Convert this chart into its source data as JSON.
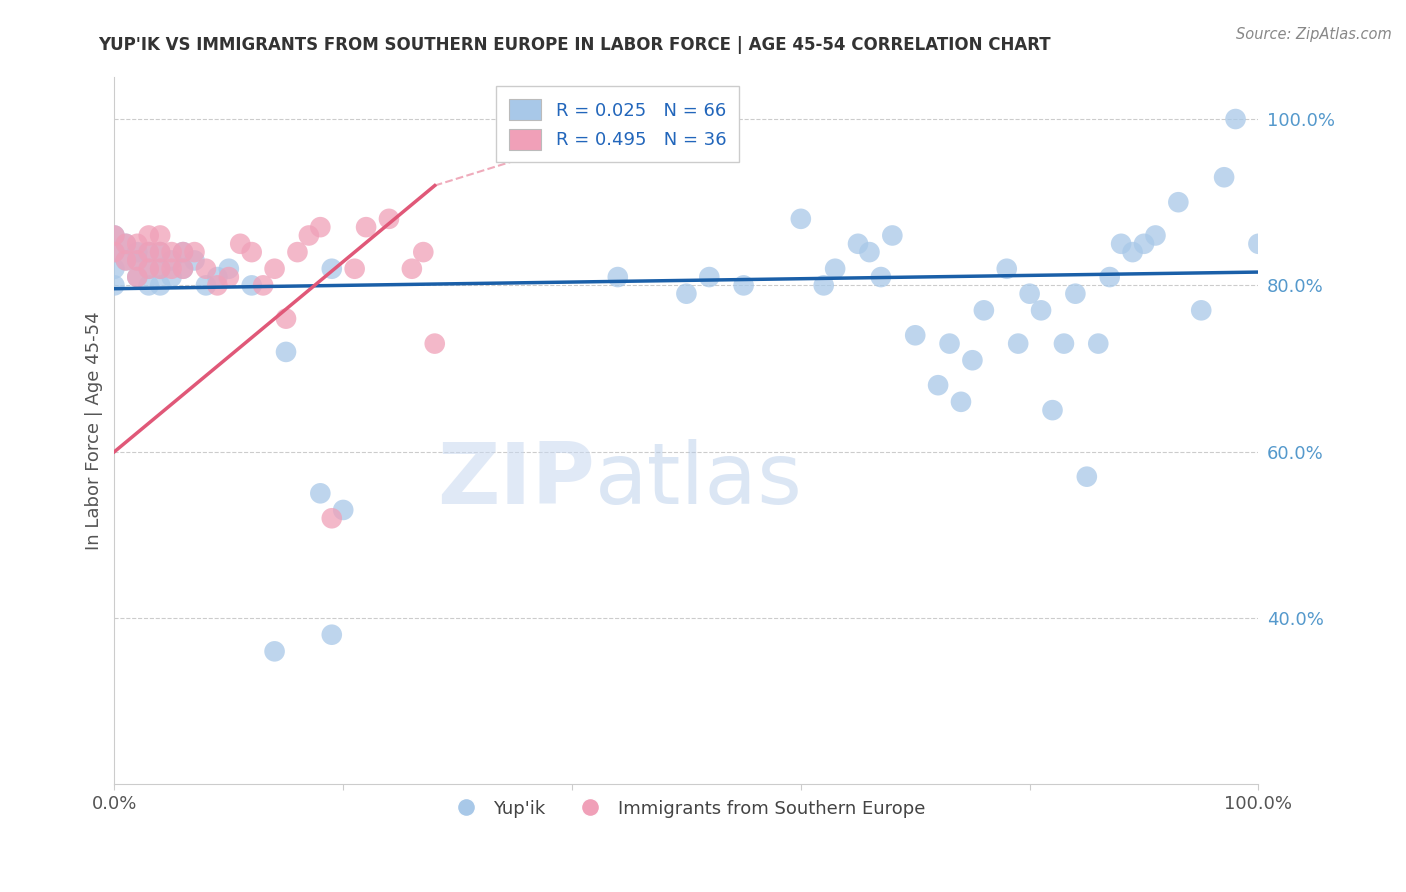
{
  "title": "YUP'IK VS IMMIGRANTS FROM SOUTHERN EUROPE IN LABOR FORCE | AGE 45-54 CORRELATION CHART",
  "source": "Source: ZipAtlas.com",
  "ylabel": "In Labor Force | Age 45-54",
  "xlim": [
    0.0,
    1.0
  ],
  "ylim": [
    0.2,
    1.05
  ],
  "ytick_labels": [
    "40.0%",
    "60.0%",
    "80.0%",
    "100.0%"
  ],
  "ytick_values": [
    0.4,
    0.6,
    0.8,
    1.0
  ],
  "legend_r1": "R = 0.025",
  "legend_n1": "N = 66",
  "legend_r2": "R = 0.495",
  "legend_n2": "N = 36",
  "color_blue": "#a8c8e8",
  "color_pink": "#f0a0b8",
  "line_blue": "#1a5fa8",
  "line_pink": "#e05878",
  "watermark_zip": "ZIP",
  "watermark_atlas": "atlas",
  "blue_x": [
    0.0,
    0.0,
    0.0,
    0.0,
    0.01,
    0.01,
    0.02,
    0.02,
    0.02,
    0.03,
    0.03,
    0.03,
    0.04,
    0.04,
    0.04,
    0.05,
    0.05,
    0.06,
    0.06,
    0.07,
    0.08,
    0.09,
    0.1,
    0.12,
    0.15,
    0.19,
    0.44,
    0.5,
    0.52,
    0.55,
    0.6,
    0.62,
    0.63,
    0.65,
    0.66,
    0.67,
    0.68,
    0.7,
    0.72,
    0.73,
    0.74,
    0.75,
    0.76,
    0.78,
    0.79,
    0.8,
    0.81,
    0.82,
    0.83,
    0.84,
    0.85,
    0.86,
    0.87,
    0.88,
    0.89,
    0.9,
    0.91,
    0.93,
    0.95,
    0.97,
    0.98,
    1.0,
    0.14,
    0.18,
    0.19,
    0.2
  ],
  "blue_y": [
    0.84,
    0.86,
    0.82,
    0.8,
    0.83,
    0.85,
    0.81,
    0.83,
    0.84,
    0.8,
    0.82,
    0.84,
    0.8,
    0.82,
    0.84,
    0.81,
    0.83,
    0.82,
    0.84,
    0.83,
    0.8,
    0.81,
    0.82,
    0.8,
    0.72,
    0.82,
    0.81,
    0.79,
    0.81,
    0.8,
    0.88,
    0.8,
    0.82,
    0.85,
    0.84,
    0.81,
    0.86,
    0.74,
    0.68,
    0.73,
    0.66,
    0.71,
    0.77,
    0.82,
    0.73,
    0.79,
    0.77,
    0.65,
    0.73,
    0.79,
    0.57,
    0.73,
    0.81,
    0.85,
    0.84,
    0.85,
    0.86,
    0.9,
    0.77,
    0.93,
    1.0,
    0.85,
    0.36,
    0.55,
    0.38,
    0.53
  ],
  "pink_x": [
    0.0,
    0.0,
    0.01,
    0.01,
    0.02,
    0.02,
    0.02,
    0.03,
    0.03,
    0.03,
    0.04,
    0.04,
    0.04,
    0.05,
    0.05,
    0.06,
    0.06,
    0.07,
    0.08,
    0.09,
    0.1,
    0.11,
    0.12,
    0.13,
    0.14,
    0.15,
    0.16,
    0.17,
    0.18,
    0.19,
    0.21,
    0.22,
    0.24,
    0.26,
    0.27,
    0.28
  ],
  "pink_y": [
    0.84,
    0.86,
    0.83,
    0.85,
    0.81,
    0.83,
    0.85,
    0.82,
    0.84,
    0.86,
    0.82,
    0.84,
    0.86,
    0.82,
    0.84,
    0.82,
    0.84,
    0.84,
    0.82,
    0.8,
    0.81,
    0.85,
    0.84,
    0.8,
    0.82,
    0.76,
    0.84,
    0.86,
    0.87,
    0.52,
    0.82,
    0.87,
    0.88,
    0.82,
    0.84,
    0.73
  ],
  "pink_line_x": [
    0.0,
    0.28
  ],
  "pink_line_y_start": 0.6,
  "pink_line_y_end": 0.92,
  "blue_line_y": 0.806
}
